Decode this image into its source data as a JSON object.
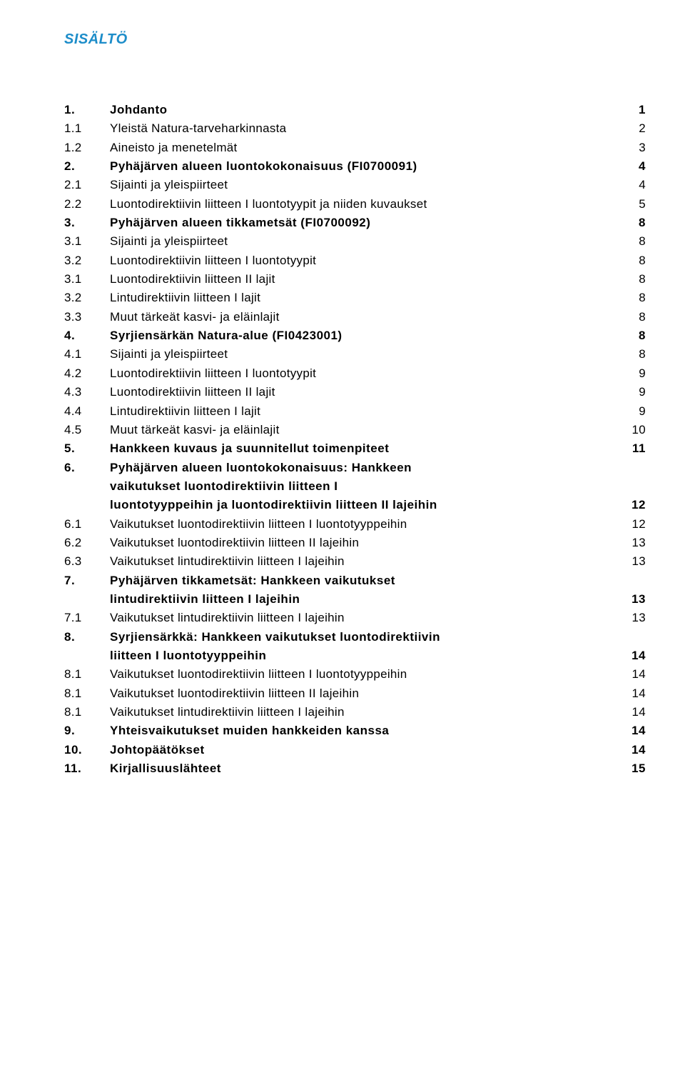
{
  "heading": "SISÄLTÖ",
  "toc": [
    {
      "num": "1.",
      "title": "Johdanto",
      "page": "1",
      "bold": true
    },
    {
      "num": "1.1",
      "title": "Yleistä Natura-tarveharkinnasta",
      "page": "2"
    },
    {
      "num": "1.2",
      "title": "Aineisto ja menetelmät",
      "page": "3"
    },
    {
      "num": "2.",
      "title": "Pyhäjärven alueen luontokokonaisuus (FI0700091)",
      "page": "4",
      "bold": true
    },
    {
      "num": "2.1",
      "title": "Sijainti ja yleispiirteet",
      "page": "4"
    },
    {
      "num": "2.2",
      "title": "Luontodirektiivin liitteen I luontotyypit ja niiden kuvaukset",
      "page": "5"
    },
    {
      "num": "3.",
      "title": "Pyhäjärven alueen tikkametsät (FI0700092)",
      "page": "8",
      "bold": true
    },
    {
      "num": "3.1",
      "title": "Sijainti ja yleispiirteet",
      "page": "8"
    },
    {
      "num": "3.2",
      "title": "Luontodirektiivin liitteen I luontotyypit",
      "page": "8"
    },
    {
      "num": "3.1",
      "title": "Luontodirektiivin liitteen II lajit",
      "page": "8"
    },
    {
      "num": "3.2",
      "title": "Lintudirektiivin liitteen I lajit",
      "page": "8"
    },
    {
      "num": "3.3",
      "title": "Muut tärkeät kasvi- ja eläinlajit",
      "page": "8"
    },
    {
      "num": "4.",
      "title": "Syrjiensärkän Natura-alue (FI0423001)",
      "page": "8",
      "bold": true
    },
    {
      "num": "4.1",
      "title": "Sijainti ja yleispiirteet",
      "page": "8"
    },
    {
      "num": "4.2",
      "title": "Luontodirektiivin liitteen I luontotyypit",
      "page": "9"
    },
    {
      "num": "4.3",
      "title": "Luontodirektiivin liitteen II lajit",
      "page": "9"
    },
    {
      "num": "4.4",
      "title": "Lintudirektiivin liitteen I lajit",
      "page": "9"
    },
    {
      "num": "4.5",
      "title": "Muut tärkeät kasvi- ja eläinlajit",
      "page": "10"
    },
    {
      "num": "5.",
      "title": "Hankkeen kuvaus ja suunnitellut toimenpiteet",
      "page": "11",
      "bold": true
    },
    {
      "num": "6.",
      "title": "Pyhäjärven alueen luontokokonaisuus: Hankkeen",
      "bold": true
    },
    {
      "cont": true,
      "title": "vaikutukset luontodirektiivin liitteen I",
      "bold": true
    },
    {
      "cont": true,
      "title": "luontotyyppeihin ja luontodirektiivin liitteen II lajeihin",
      "page": "12",
      "bold": true
    },
    {
      "num": "6.1",
      "title": "Vaikutukset luontodirektiivin liitteen I luontotyyppeihin",
      "page": "12"
    },
    {
      "num": "6.2",
      "title": "Vaikutukset luontodirektiivin liitteen II lajeihin",
      "page": "13"
    },
    {
      "num": "6.3",
      "title": "Vaikutukset lintudirektiivin liitteen I lajeihin",
      "page": "13"
    },
    {
      "num": "7.",
      "title": "Pyhäjärven tikkametsät: Hankkeen vaikutukset",
      "bold": true
    },
    {
      "cont": true,
      "title": "lintudirektiivin liitteen I lajeihin",
      "page": "13",
      "bold": true
    },
    {
      "num": "7.1",
      "title": "Vaikutukset lintudirektiivin liitteen I lajeihin",
      "page": "13"
    },
    {
      "num": "8.",
      "title": "Syrjiensärkkä: Hankkeen vaikutukset luontodirektiivin",
      "bold": true
    },
    {
      "cont": true,
      "title": "liitteen I luontotyyppeihin",
      "page": "14",
      "bold": true
    },
    {
      "num": "8.1",
      "title": "Vaikutukset luontodirektiivin liitteen I luontotyyppeihin",
      "page": "14"
    },
    {
      "num": "8.1",
      "title": "Vaikutukset luontodirektiivin liitteen II lajeihin",
      "page": "14"
    },
    {
      "num": "8.1",
      "title": "Vaikutukset lintudirektiivin liitteen I lajeihin",
      "page": "14"
    },
    {
      "num": "9.",
      "title": "Yhteisvaikutukset muiden hankkeiden kanssa",
      "page": "14",
      "bold": true
    },
    {
      "num": "10.",
      "title": "Johtopäätökset",
      "page": "14",
      "bold": true
    },
    {
      "num": "11.",
      "title": "Kirjallisuuslähteet",
      "page": "15",
      "bold": true
    }
  ]
}
